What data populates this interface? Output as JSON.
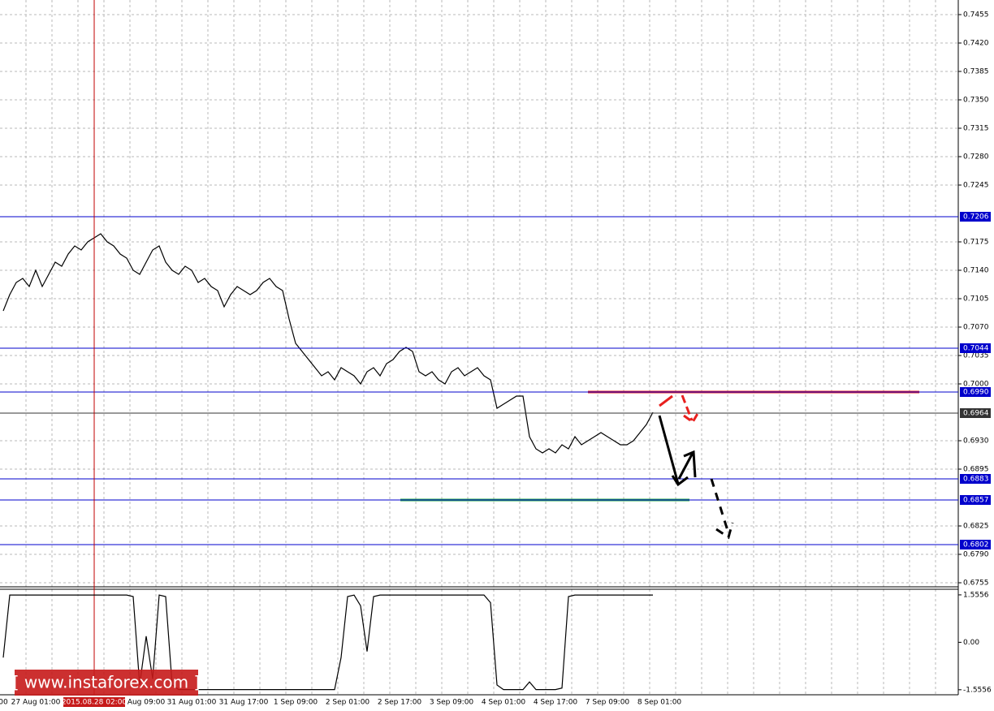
{
  "chart_data": [
    {
      "type": "line",
      "categories": [
        "00",
        null,
        null,
        null,
        null,
        "27 Aug 01:00",
        null,
        null,
        null,
        null,
        null,
        null,
        null,
        null,
        "2015.08.28 02:00",
        null,
        null,
        null,
        null,
        null,
        null,
        null,
        "Aug 09:00",
        null,
        null,
        null,
        null,
        null,
        null,
        "31 Aug 01:00",
        null,
        null,
        null,
        null,
        null,
        null,
        null,
        "31 Aug 17:00",
        null,
        null,
        null,
        null,
        null,
        null,
        null,
        "1 Sep 09:00",
        null,
        null,
        null,
        null,
        null,
        null,
        null,
        "2 Sep 01:00",
        null,
        null,
        null,
        null,
        null,
        null,
        null,
        "2 Sep 17:00",
        null,
        null,
        null,
        null,
        null,
        null,
        null,
        "3 Sep 09:00",
        null,
        null,
        null,
        null,
        null,
        null,
        null,
        "4 Sep 01:00",
        null,
        null,
        null,
        null,
        null,
        null,
        null,
        "4 Sep 17:00",
        null,
        null,
        null,
        null,
        null,
        null,
        null,
        "7 Sep 09:00",
        null,
        null,
        null,
        null,
        null,
        null,
        null,
        "8 Sep 01:00"
      ],
      "cursor_index": 14,
      "series": [
        {
          "color": "#000000",
          "values": [
            0.709,
            0.711,
            0.7125,
            0.713,
            0.712,
            0.714,
            0.712,
            0.7135,
            0.715,
            0.7145,
            0.716,
            0.717,
            0.7165,
            0.7175,
            0.718,
            0.7185,
            0.7175,
            0.717,
            0.716,
            0.7155,
            0.714,
            0.7135,
            0.715,
            0.7165,
            0.717,
            0.715,
            0.714,
            0.7135,
            0.7145,
            0.714,
            0.7125,
            0.713,
            0.712,
            0.7115,
            0.7095,
            0.711,
            0.712,
            0.7115,
            0.711,
            0.7115,
            0.7125,
            0.713,
            0.712,
            0.7115,
            0.708,
            0.705,
            0.704,
            0.703,
            0.702,
            0.701,
            0.7015,
            0.7005,
            0.702,
            0.7015,
            0.701,
            0.7,
            0.7015,
            0.702,
            0.701,
            0.7025,
            0.703,
            0.704,
            0.7045,
            0.704,
            0.7015,
            0.701,
            0.7015,
            0.7005,
            0.7,
            0.7015,
            0.702,
            0.701,
            0.7015,
            0.702,
            0.701,
            0.7005,
            0.697,
            0.6975,
            0.698,
            0.6985,
            0.6985,
            0.6935,
            0.692,
            0.6915,
            0.692,
            0.6915,
            0.6925,
            0.692,
            0.6935,
            0.6925,
            0.693,
            0.6935,
            0.694,
            0.6935,
            0.693,
            0.6925,
            0.6925,
            0.693,
            0.694,
            0.695,
            0.6965,
            null
          ]
        }
      ],
      "ylim": [
        0.6751,
        0.7473
      ],
      "yticks": [
        0.7455,
        {
          "value": 0.742,
          "label": "0.7420"
        },
        0.7385,
        {
          "value": 0.735,
          "label": "0.7350"
        },
        0.7315,
        {
          "value": 0.728,
          "label": "0.7280"
        },
        0.7245,
        0.7175,
        {
          "value": 0.714,
          "label": "0.7140"
        },
        0.7105,
        {
          "value": 0.707,
          "label": "0.7070"
        },
        0.7035,
        {
          "value": 0.7,
          "label": "0.7000"
        },
        {
          "value": 0.693,
          "label": "0.6930"
        },
        0.6895,
        0.6825,
        {
          "value": 0.679,
          "label": "0.6790"
        },
        0.6755
      ],
      "grid": true,
      "levels": [
        {
          "value": 0.7206,
          "color": "#0000cc"
        },
        {
          "value": 0.7044,
          "color": "#0000cc"
        },
        {
          "value": 0.699,
          "label": "0.6990",
          "color": "#0000cc"
        },
        {
          "value": 0.6964,
          "color": "#333333"
        },
        {
          "value": 0.6883,
          "color": "#0000cc"
        },
        {
          "value": 0.6857,
          "color": "#0000cc"
        },
        {
          "value": 0.6802,
          "color": "#0000cc"
        }
      ],
      "segments": [
        {
          "value": 0.699,
          "color": "#e8201e"
        },
        {
          "value": 0.6857,
          "color": "#22aa44"
        }
      ],
      "watermark": "[ www.instaforex.com ]"
    },
    {
      "type": "line",
      "series": [
        {
          "color": "#000000",
          "values": [
            -0.5,
            1.55,
            1.55,
            1.55,
            1.55,
            1.55,
            1.55,
            1.55,
            1.55,
            1.55,
            1.55,
            1.55,
            1.55,
            1.55,
            1.55,
            1.55,
            1.55,
            1.55,
            1.55,
            1.55,
            1.5,
            -1.4,
            0.2,
            -1.2,
            1.55,
            1.5,
            -1.4,
            -1.55,
            -1.55,
            -1.55,
            -1.55,
            -1.55,
            -1.55,
            -1.55,
            -1.55,
            -1.55,
            -1.55,
            -1.55,
            -1.55,
            -1.55,
            -1.55,
            -1.55,
            -1.55,
            -1.55,
            -1.55,
            -1.55,
            -1.55,
            -1.55,
            -1.55,
            -1.55,
            -1.55,
            -1.55,
            -0.5,
            1.5,
            1.55,
            1.2,
            -0.3,
            1.5,
            1.55,
            1.55,
            1.55,
            1.55,
            1.55,
            1.55,
            1.55,
            1.55,
            1.55,
            1.55,
            1.55,
            1.55,
            1.55,
            1.55,
            1.55,
            1.55,
            1.55,
            1.3,
            -1.4,
            -1.55,
            -1.55,
            -1.55,
            -1.55,
            -1.3,
            -1.55,
            -1.55,
            -1.55,
            -1.55,
            -1.5,
            1.5,
            1.55,
            1.55,
            1.55,
            1.55,
            1.55,
            1.55,
            1.55,
            1.55,
            1.55,
            1.55,
            1.55,
            1.55,
            1.55,
            null
          ]
        }
      ],
      "ylim": [
        -1.72,
        1.74
      ],
      "yticks": [
        1.5556,
        {
          "value": 0,
          "label": "0.00"
        },
        -1.5556
      ]
    }
  ]
}
